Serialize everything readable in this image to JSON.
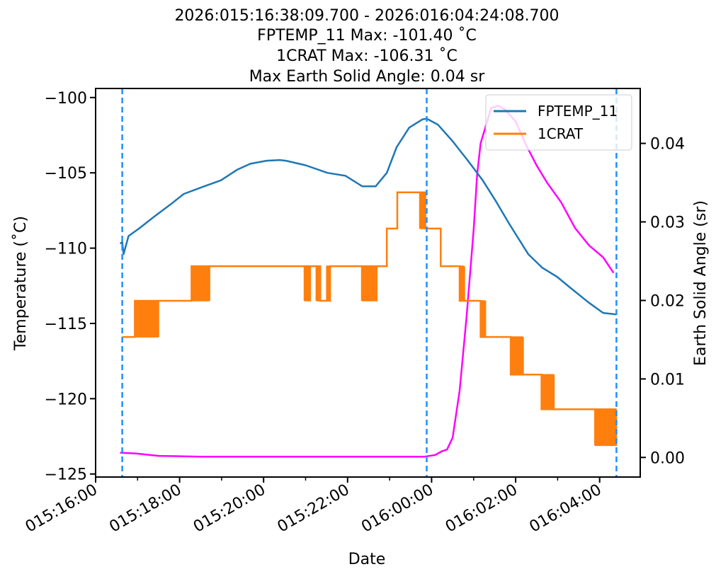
{
  "chart_data": {
    "type": "line",
    "title_lines": [
      "2026:015:16:38:09.700 - 2026:016:04:24:08.700",
      "FPTEMP_11 Max: -101.40 $^\\circ$C",
      "1CRAT Max: -106.31 $^\\circ$C",
      "Max Earth Solid Angle: 0.04 sr"
    ],
    "title_display": [
      "2026:015:16:38:09.700 - 2026:016:04:24:08.700",
      "FPTEMP_11 Max: -101.40 ˚C",
      "1CRAT Max: -106.31 ˚C",
      "Max Earth Solid Angle: 0.04 sr"
    ],
    "xlabel": "Date",
    "ylabel": "Temperature ($^\\circ$C)",
    "ylabel_display": "Temperature (˚C)",
    "y2label": "Earth Solid Angle (sr)",
    "ylim": [
      -125.2,
      -99.4
    ],
    "y2lim": [
      -0.0025,
      0.047
    ],
    "y_ticks": [
      -100,
      -105,
      -110,
      -115,
      -120,
      -125
    ],
    "y_tick_labels": [
      "−100",
      "−105",
      "−110",
      "−115",
      "−120",
      "−125"
    ],
    "y2_ticks": [
      0.04,
      0.03,
      0.02,
      0.01,
      0.0
    ],
    "y2_tick_labels": [
      "0.04",
      "0.03",
      "0.02",
      "0.01",
      "0.00"
    ],
    "x_axis_start": "2026:015:16:00",
    "x_axis_end": "2026:016:04:58",
    "x_ticks": [
      "2026:015:16:00",
      "2026:015:18:00",
      "2026:015:20:00",
      "2026:015:22:00",
      "2026:016:00:00",
      "2026:016:02:00",
      "2026:016:04:00"
    ],
    "x_tick_labels": [
      "015:16:00",
      "015:18:00",
      "015:20:00",
      "015:22:00",
      "016:00:00",
      "016:02:00",
      "016:04:00"
    ],
    "vlines": [
      {
        "x": "2026:015:16:38",
        "color": "#1e90ff"
      },
      {
        "x": "2026:015:23:53",
        "color": "#1e90ff"
      },
      {
        "x": "2026:016:04:24",
        "color": "#1e90ff"
      }
    ],
    "legend_position": "top-right",
    "series": [
      {
        "name": "FPTEMP_11",
        "axis": "left",
        "color": "#1f77b4",
        "x": [
          "2026:015:16:35",
          "2026:015:16:38",
          "2026:015:16:40",
          "2026:015:16:47",
          "2026:015:17:02",
          "2026:015:17:24",
          "2026:015:17:47",
          "2026:015:18:06",
          "2026:015:18:35",
          "2026:015:18:59",
          "2026:015:19:22",
          "2026:015:19:41",
          "2026:015:20:04",
          "2026:015:20:23",
          "2026:015:20:32",
          "2026:015:21:00",
          "2026:015:21:31",
          "2026:015:21:57",
          "2026:015:22:21",
          "2026:015:22:40",
          "2026:015:22:56",
          "2026:015:23:10",
          "2026:015:23:28",
          "2026:015:23:47",
          "2026:015:23:53",
          "2026:016:00:09",
          "2026:016:00:30",
          "2026:016:00:52",
          "2026:016:01:13",
          "2026:016:01:32",
          "2026:016:01:51",
          "2026:016:02:18",
          "2026:016:02:38",
          "2026:016:02:59",
          "2026:016:03:20",
          "2026:016:03:44",
          "2026:016:04:05",
          "2026:016:04:24"
        ],
        "values": [
          -109.7,
          -109.6,
          -110.4,
          -109.2,
          -108.7,
          -107.9,
          -107.1,
          -106.4,
          -105.9,
          -105.5,
          -104.8,
          -104.4,
          -104.2,
          -104.15,
          -104.2,
          -104.5,
          -105.0,
          -105.2,
          -105.9,
          -105.9,
          -105.0,
          -103.3,
          -102.0,
          -101.45,
          -101.4,
          -101.8,
          -102.9,
          -104.2,
          -105.5,
          -106.9,
          -108.4,
          -110.4,
          -111.3,
          -111.9,
          -112.7,
          -113.6,
          -114.3,
          -114.4
        ]
      },
      {
        "name": "1CRAT",
        "axis": "left",
        "color": "#ff7f0e",
        "x": [
          "2026:015:16:38",
          "2026:015:16:56",
          "2026:015:16:56",
          "2026:015:17:30",
          "2026:015:17:30",
          "2026:015:18:17",
          "2026:015:18:17",
          "2026:015:20:58",
          "2026:015:20:58",
          "2026:015:21:21",
          "2026:015:21:21",
          "2026:015:21:35",
          "2026:015:21:35",
          "2026:015:22:20",
          "2026:015:22:20",
          "2026:015:22:56",
          "2026:015:22:56",
          "2026:015:23:11",
          "2026:015:23:11",
          "2026:015:23:51",
          "2026:015:23:51",
          "2026:016:00:13",
          "2026:016:00:13",
          "2026:016:00:40",
          "2026:016:00:40",
          "2026:016:01:10",
          "2026:016:01:10",
          "2026:016:01:53",
          "2026:016:01:53",
          "2026:016:02:37",
          "2026:016:02:37",
          "2026:016:03:10",
          "2026:016:03:10",
          "2026:016:03:53",
          "2026:016:03:53",
          "2026:016:04:24"
        ],
        "values": [
          -115.9,
          -115.9,
          -113.5,
          -113.5,
          -113.5,
          -113.5,
          -111.2,
          -111.2,
          -111.2,
          -111.2,
          -113.5,
          -113.5,
          -111.2,
          -111.2,
          -111.2,
          -111.2,
          -108.7,
          -108.7,
          -106.3,
          -106.3,
          -108.7,
          -108.7,
          -111.2,
          -111.2,
          -113.5,
          -113.5,
          -115.9,
          -115.9,
          -118.4,
          -118.4,
          -120.7,
          -120.7,
          -120.7,
          -120.7,
          -120.7,
          -120.7
        ]
      },
      {
        "name": "Earth Solid Angle",
        "axis": "right",
        "color": "#ff00ff",
        "x": [
          "2026:015:16:35",
          "2026:015:16:58",
          "2026:015:17:30",
          "2026:015:18:30",
          "2026:015:20:00",
          "2026:015:22:00",
          "2026:015:23:50",
          "2026:016:00:05",
          "2026:016:00:15",
          "2026:016:00:22",
          "2026:016:00:30",
          "2026:016:00:40",
          "2026:016:00:50",
          "2026:016:01:00",
          "2026:016:01:05",
          "2026:016:01:10",
          "2026:016:01:15",
          "2026:016:01:25",
          "2026:016:01:35",
          "2026:016:01:45",
          "2026:016:02:00",
          "2026:016:02:15",
          "2026:016:02:30",
          "2026:016:02:45",
          "2026:016:03:05",
          "2026:016:03:25",
          "2026:016:03:45",
          "2026:016:04:05",
          "2026:016:04:20"
        ],
        "values": [
          0.0006,
          0.0005,
          0.0002,
          0.0001,
          0.0001,
          0.0001,
          0.0001,
          0.0003,
          0.0008,
          0.001,
          0.0025,
          0.0085,
          0.018,
          0.029,
          0.036,
          0.04,
          0.0415,
          0.0445,
          0.0448,
          0.0443,
          0.0428,
          0.0398,
          0.0372,
          0.035,
          0.0325,
          0.0292,
          0.027,
          0.0255,
          0.0235
        ]
      }
    ],
    "crat_oscillation_bands": [
      {
        "x_start": "2026:015:16:56",
        "x_end": "2026:015:17:30",
        "low": -115.9,
        "high": -113.5
      },
      {
        "x_start": "2026:015:18:17",
        "x_end": "2026:015:18:43",
        "low": -113.5,
        "high": -111.2
      },
      {
        "x_start": "2026:015:20:58",
        "x_end": "2026:015:21:07",
        "low": -113.5,
        "high": -111.2
      },
      {
        "x_start": "2026:015:21:15",
        "x_end": "2026:015:21:21",
        "low": -113.5,
        "high": -111.2
      },
      {
        "x_start": "2026:015:21:30",
        "x_end": "2026:015:21:35",
        "low": -113.5,
        "high": -111.2
      },
      {
        "x_start": "2026:015:22:20",
        "x_end": "2026:015:22:42",
        "low": -113.5,
        "high": -111.2
      },
      {
        "x_start": "2026:015:23:43",
        "x_end": "2026:015:23:51",
        "low": -108.7,
        "high": -106.3
      },
      {
        "x_start": "2026:016:00:40",
        "x_end": "2026:016:00:47",
        "low": -113.5,
        "high": -111.2
      },
      {
        "x_start": "2026:016:01:10",
        "x_end": "2026:016:01:17",
        "low": -115.9,
        "high": -113.5
      },
      {
        "x_start": "2026:016:01:53",
        "x_end": "2026:016:02:11",
        "low": -118.4,
        "high": -115.9
      },
      {
        "x_start": "2026:016:02:37",
        "x_end": "2026:016:02:55",
        "low": -120.7,
        "high": -118.4
      },
      {
        "x_start": "2026:016:03:53",
        "x_end": "2026:016:04:24",
        "low": -123.1,
        "high": -120.7
      }
    ]
  }
}
